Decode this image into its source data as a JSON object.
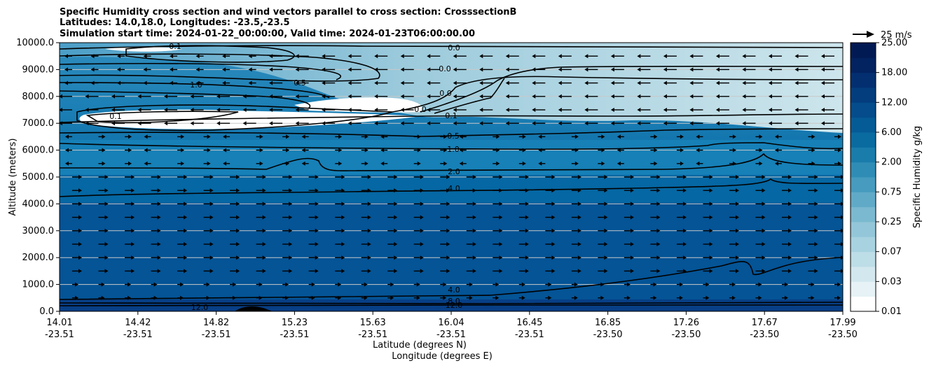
{
  "chart_data": {
    "type": "contour",
    "title_lines": [
      "Specific Humidity cross section and wind vectors parallel to cross section: CrosssectionB",
      "Latitudes: 14.0,18.0, Longitudes: -23.5,-23.5",
      "Simulation start time: 2024-01-22_00:00:00, Valid time: 2024-01-23T06:00:00.00"
    ],
    "ylabel": "Altitude (meters)",
    "xlabel_lines": [
      "Latitude (degrees N)",
      "Longitude (degrees E)"
    ],
    "ylim": [
      0,
      10000
    ],
    "y_ticks": [
      "0.0",
      "1000.0",
      "2000.0",
      "3000.0",
      "4000.0",
      "5000.0",
      "6000.0",
      "7000.0",
      "8000.0",
      "9000.0",
      "10000.0"
    ],
    "x_ticks": [
      {
        "lat": "14.01",
        "lon": "-23.51"
      },
      {
        "lat": "14.42",
        "lon": "-23.51"
      },
      {
        "lat": "14.82",
        "lon": "-23.51"
      },
      {
        "lat": "15.23",
        "lon": "-23.51"
      },
      {
        "lat": "15.63",
        "lon": "-23.51"
      },
      {
        "lat": "16.04",
        "lon": "-23.51"
      },
      {
        "lat": "16.45",
        "lon": "-23.51"
      },
      {
        "lat": "16.85",
        "lon": "-23.50"
      },
      {
        "lat": "17.26",
        "lon": "-23.50"
      },
      {
        "lat": "17.67",
        "lon": "-23.50"
      },
      {
        "lat": "17.99",
        "lon": "-23.50"
      }
    ],
    "colorbar": {
      "label": "Specific Humidity g/kg",
      "ticks": [
        "0.01",
        "0.03",
        "0.07",
        "0.25",
        "0.75",
        "2.00",
        "6.00",
        "12.00",
        "18.00",
        "25.00"
      ]
    },
    "contour_labels": [
      "0.0",
      "0.0",
      "0.0",
      "0.0",
      "0.1",
      "0.5",
      "1.0",
      "2.0",
      "4.0",
      "4.0",
      "8.0",
      "12.0",
      "0.1",
      "0.5",
      "1.0",
      "0.1",
      "12.0"
    ],
    "quiver_key": "25 m/s",
    "grid": true
  }
}
